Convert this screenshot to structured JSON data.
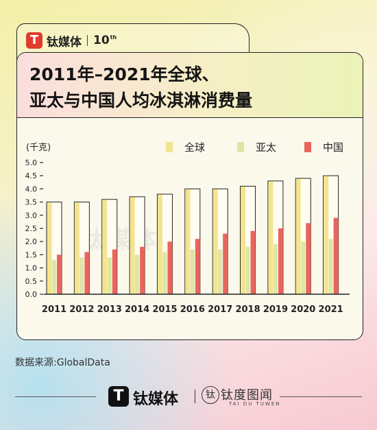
{
  "brand": {
    "logo_glyph": "T",
    "name": "钛媒体",
    "anniversary": "10",
    "anniversary_sup": "th"
  },
  "title": {
    "line1": "2011年–2021年全球、",
    "line2": "亚太与中国人均冰淇淋消费量"
  },
  "source": "数据来源:GlobalData",
  "watermark": "钛媒体",
  "footer": {
    "logo_glyph": "T",
    "brand1": "钛媒体",
    "brand2_mark": "钛",
    "brand2": "钛度图闻",
    "brand2_sub": "TAI DU TUWEN"
  },
  "colors": {
    "global": "#f3e48f",
    "asia_pacific": "#dde6a5",
    "china": "#e9655c"
  },
  "chart_data": {
    "type": "bar",
    "unit_label": "(千克)",
    "categories": [
      "2011",
      "2012",
      "2013",
      "2014",
      "2015",
      "2016",
      "2017",
      "2018",
      "2019",
      "2020",
      "2021"
    ],
    "series": [
      {
        "name": "全球",
        "values": [
          3.5,
          3.5,
          3.6,
          3.7,
          3.8,
          4.0,
          4.0,
          4.1,
          4.3,
          4.4,
          4.5
        ]
      },
      {
        "name": "亚太",
        "values": [
          1.3,
          1.4,
          1.4,
          1.5,
          1.6,
          1.7,
          1.7,
          1.8,
          1.9,
          2.0,
          2.1
        ]
      },
      {
        "name": "中国",
        "values": [
          1.5,
          1.6,
          1.7,
          1.8,
          2.0,
          2.1,
          2.3,
          2.4,
          2.5,
          2.7,
          2.9
        ]
      }
    ],
    "ylim": [
      0,
      5.0
    ],
    "yticks": [
      "0.0",
      "0.5",
      "1.0",
      "1.5",
      "2.0",
      "2.5",
      "3.0",
      "3.5",
      "4.0",
      "4.5",
      "5.0"
    ],
    "legend_position": "top-right",
    "grid": false
  }
}
